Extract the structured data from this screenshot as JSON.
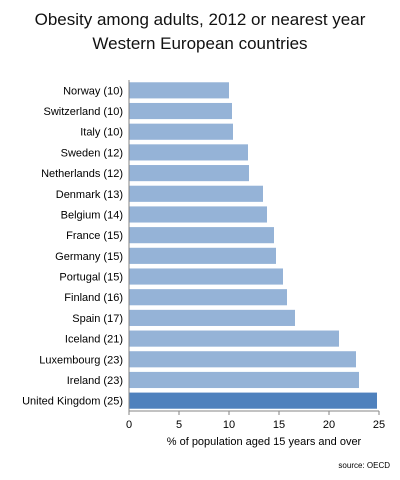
{
  "chart_data": {
    "type": "bar",
    "orientation": "horizontal",
    "title": "Obesity among adults, 2012 or nearest year",
    "subtitle": "Western European countries",
    "categories": [
      "Norway (10)",
      "Switzerland (10)",
      "Italy (10)",
      "Sweden (12)",
      "Netherlands (12)",
      "Denmark (13)",
      "Belgium (14)",
      "France (15)",
      "Germany (15)",
      "Portugal (15)",
      "Finland (16)",
      "Spain (17)",
      "Iceland (21)",
      "Luxembourg (23)",
      "Ireland (23)",
      "United Kingdom (25)"
    ],
    "values": [
      10.0,
      10.3,
      10.4,
      11.9,
      12.0,
      13.4,
      13.8,
      14.5,
      14.7,
      15.4,
      15.8,
      16.6,
      21.0,
      22.7,
      23.0,
      24.8
    ],
    "highlight_index": 15,
    "xlabel": "% of population aged 15 years and over",
    "xlim": [
      0,
      25
    ],
    "xticks": [
      "0",
      "5",
      "10",
      "15",
      "20",
      "25"
    ],
    "grid": false,
    "bar_color": "#95b3d7",
    "highlight_color": "#4f81bd"
  },
  "source": "source: OECD"
}
